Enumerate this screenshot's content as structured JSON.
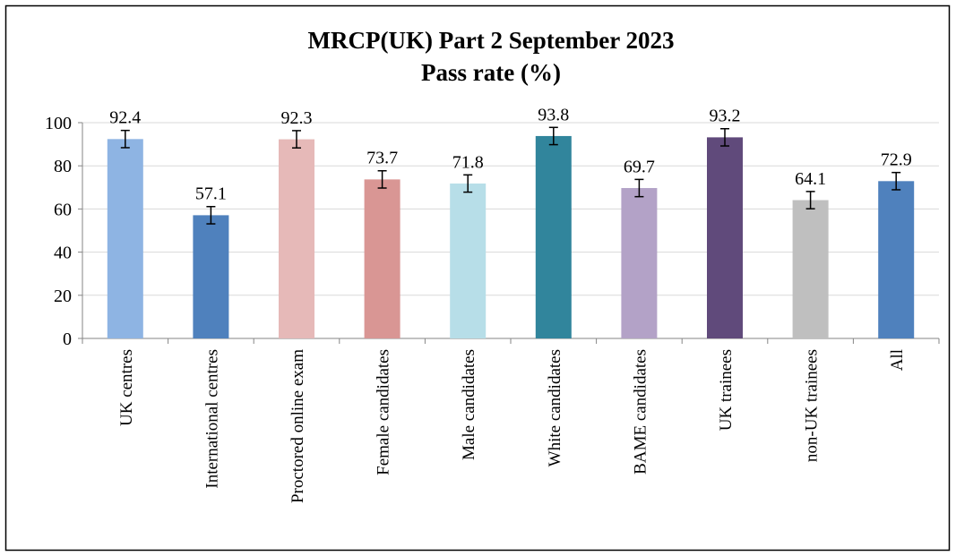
{
  "chart_data": {
    "type": "bar",
    "title": "MRCP(UK) Part 2 September 2023",
    "subtitle": "Pass rate (%)",
    "categories": [
      "UK centres",
      "International centres",
      "Proctored online exam",
      "Female candidates",
      "Male candidates",
      "White candidates",
      "BAME candidates",
      "UK trainees",
      "non-UK trainees",
      "All"
    ],
    "values": [
      92.4,
      57.1,
      92.3,
      73.7,
      71.8,
      93.8,
      69.7,
      93.2,
      64.1,
      72.9
    ],
    "errors": [
      4,
      4,
      4,
      4,
      4,
      4,
      4,
      4,
      4,
      4
    ],
    "colors": [
      "#8eb4e3",
      "#4f81bd",
      "#e6b9b8",
      "#d99694",
      "#b7dee8",
      "#31859c",
      "#b3a2c7",
      "#604a7b",
      "#bfbfbf",
      "#4f81bd"
    ],
    "ylim": [
      0,
      100
    ],
    "yticks": [
      0,
      20,
      40,
      60,
      80,
      100
    ],
    "grid": true
  }
}
